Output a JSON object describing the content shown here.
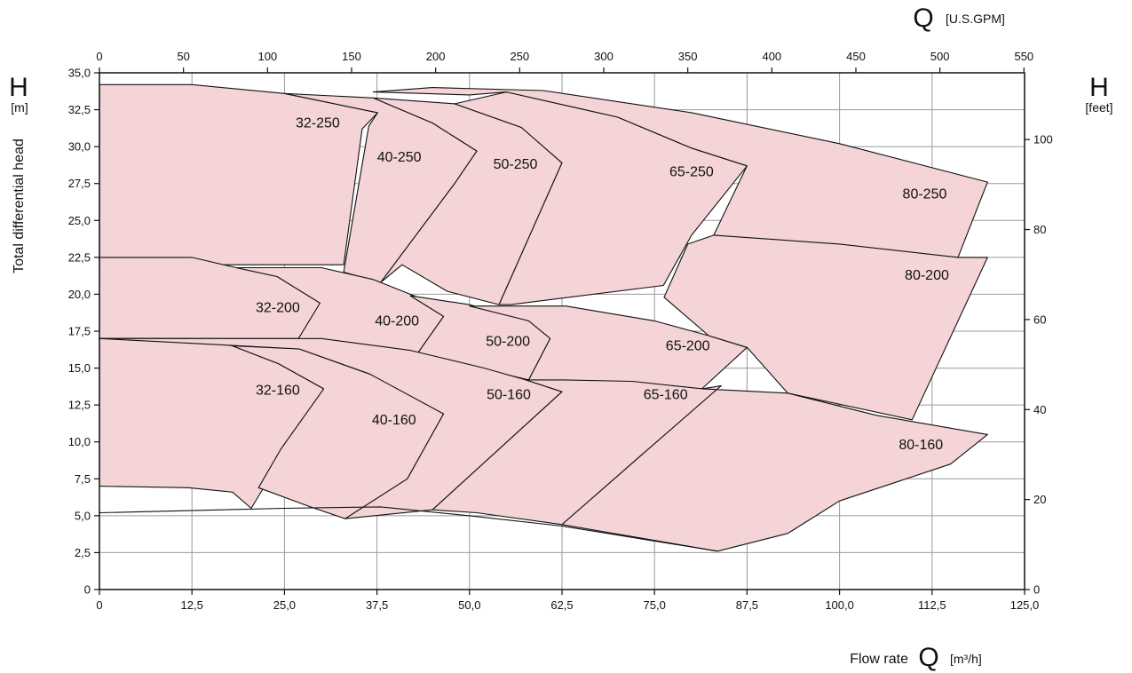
{
  "chart_data": {
    "type": "area",
    "title": "",
    "xlabel": "Flow rate",
    "x_symbol": "Q",
    "x_unit": "[m³/h]",
    "x2_symbol": "Q",
    "x2_unit": "[U.S.GPM]",
    "ylabel": "Total differential head",
    "y_symbol": "H",
    "y_unit": "[m]",
    "y2_symbol": "H",
    "y2_unit": "[feet]",
    "xlim": [
      0,
      125
    ],
    "ylim": [
      0,
      35
    ],
    "x2lim": [
      0,
      550
    ],
    "y2lim": [
      0,
      115
    ],
    "x_ticks": [
      "0",
      "12,5",
      "25,0",
      "37,5",
      "50,0",
      "62,5",
      "75,0",
      "87,5",
      "100,0",
      "112,5",
      "125,0"
    ],
    "y_ticks": [
      "0",
      "2,5",
      "5,0",
      "7,5",
      "10,0",
      "12,5",
      "15,0",
      "17,5",
      "20,0",
      "22,5",
      "25,0",
      "27,5",
      "30,0",
      "32,5",
      "35,0"
    ],
    "x2_ticks": [
      "0",
      "50",
      "100",
      "150",
      "200",
      "250",
      "300",
      "350",
      "400",
      "450",
      "500",
      "550"
    ],
    "y2_ticks": [
      "0",
      "20",
      "40",
      "60",
      "80",
      "100"
    ],
    "grid": true,
    "fill_color": "#f4d4d6",
    "line_color": "#111111",
    "series": [
      {
        "name": "32-250",
        "label_at": [
          29.5,
          31.3
        ],
        "points": [
          [
            0,
            34.2
          ],
          [
            12.5,
            34.2
          ],
          [
            25,
            33.6
          ],
          [
            37.6,
            32.3
          ],
          [
            35.5,
            31.2
          ],
          [
            33,
            22
          ],
          [
            0,
            22
          ]
        ]
      },
      {
        "name": "40-250",
        "label_at": [
          40.5,
          29.0
        ],
        "points": [
          [
            25,
            33.6
          ],
          [
            37,
            33.3
          ],
          [
            45,
            31.6
          ],
          [
            51,
            29.7
          ],
          [
            48,
            27.5
          ],
          [
            38,
            20.8
          ],
          [
            33,
            21.5
          ],
          [
            36.4,
            31.4
          ],
          [
            37.6,
            32.3
          ]
        ]
      },
      {
        "name": "50-250",
        "label_at": [
          56.2,
          28.5
        ],
        "points": [
          [
            37,
            33.3
          ],
          [
            48,
            32.9
          ],
          [
            57,
            31.3
          ],
          [
            62.5,
            28.9
          ],
          [
            54,
            19.3
          ],
          [
            47,
            20.2
          ],
          [
            40.9,
            22.0
          ],
          [
            38,
            20.8
          ],
          [
            48,
            27.5
          ],
          [
            51,
            29.7
          ],
          [
            45,
            31.6
          ]
        ]
      },
      {
        "name": "65-250",
        "label_at": [
          80,
          28.0
        ],
        "points": [
          [
            48,
            32.9
          ],
          [
            55,
            33.7
          ],
          [
            70,
            32.0
          ],
          [
            80,
            29.9
          ],
          [
            87.5,
            28.7
          ],
          [
            80,
            24
          ],
          [
            76.2,
            20.6
          ],
          [
            55.6,
            19.3
          ],
          [
            54,
            19.3
          ],
          [
            62.5,
            28.9
          ],
          [
            57,
            31.3
          ]
        ]
      },
      {
        "name": "80-250",
        "label_at": [
          111.5,
          26.5
        ],
        "points": [
          [
            37,
            33.7
          ],
          [
            45,
            34.0
          ],
          [
            60,
            33.8
          ],
          [
            80,
            32.3
          ],
          [
            100,
            30.2
          ],
          [
            120,
            27.6
          ],
          [
            116,
            22.5
          ],
          [
            92,
            23.5
          ],
          [
            83,
            24
          ],
          [
            87.5,
            28.7
          ],
          [
            80,
            29.9
          ],
          [
            70,
            32.0
          ],
          [
            55,
            33.7
          ],
          [
            50,
            33.5
          ]
        ]
      },
      {
        "name": "32-200",
        "label_at": [
          24.1,
          18.8
        ],
        "points": [
          [
            0,
            22.5
          ],
          [
            12.5,
            22.5
          ],
          [
            18.5,
            21.8
          ],
          [
            24,
            21.2
          ],
          [
            29.5,
            19.6
          ],
          [
            30,
            19.3
          ],
          [
            27,
            17
          ],
          [
            0,
            17
          ]
        ]
      },
      {
        "name": "40-200",
        "label_at": [
          40.2,
          17.9
        ],
        "points": [
          [
            18.5,
            21.8
          ],
          [
            30,
            21.8
          ],
          [
            37,
            21.0
          ],
          [
            45,
            19.4
          ],
          [
            46.5,
            18.5
          ],
          [
            43,
            16
          ],
          [
            26.9,
            17.0
          ],
          [
            29.8,
            19.4
          ],
          [
            24,
            21.2
          ]
        ]
      },
      {
        "name": "50-200",
        "label_at": [
          55.2,
          16.5
        ],
        "points": [
          [
            42,
            19.9
          ],
          [
            50,
            19.3
          ],
          [
            58,
            18.2
          ],
          [
            61,
            17.2
          ],
          [
            60.9,
            17.0
          ],
          [
            58,
            14.2
          ],
          [
            43,
            16
          ],
          [
            46.5,
            18.5
          ]
        ]
      },
      {
        "name": "65-200",
        "label_at": [
          79.5,
          16.2
        ],
        "points": [
          [
            50,
            19.2
          ],
          [
            63,
            19.2
          ],
          [
            75,
            18.2
          ],
          [
            82.3,
            17.2
          ],
          [
            87.5,
            16.4
          ],
          [
            81.4,
            13.6
          ],
          [
            58,
            14.2
          ],
          [
            60.9,
            17.0
          ],
          [
            58,
            18.2
          ]
        ]
      },
      {
        "name": "80-200",
        "label_at": [
          111.8,
          21.0
        ],
        "points": [
          [
            82.3,
            17.2
          ],
          [
            76.3,
            19.8
          ],
          [
            79.5,
            23.4
          ],
          [
            83,
            24
          ],
          [
            100,
            23.4
          ],
          [
            116,
            22.5
          ],
          [
            120,
            22.5
          ],
          [
            109.8,
            11.5
          ],
          [
            93,
            13.3
          ],
          [
            87.5,
            16.4
          ]
        ]
      },
      {
        "name": "32-160",
        "label_at": [
          24.1,
          13.2
        ],
        "points": [
          [
            0,
            17.0
          ],
          [
            12.5,
            17.0
          ],
          [
            18,
            16.5
          ],
          [
            24.2,
            15.3
          ],
          [
            30.3,
            13.6
          ],
          [
            20.5,
            5.5
          ],
          [
            18,
            6.6
          ],
          [
            12,
            6.9
          ],
          [
            0,
            7.0
          ]
        ]
      },
      {
        "name": "40-160",
        "label_at": [
          39.8,
          11.2
        ],
        "points": [
          [
            18,
            16.5
          ],
          [
            27,
            16.3
          ],
          [
            36.5,
            14.6
          ],
          [
            43,
            13
          ],
          [
            46.5,
            11.9
          ],
          [
            41.6,
            7.5
          ],
          [
            33.2,
            4.8
          ],
          [
            28.5,
            5.6
          ],
          [
            21.5,
            6.9
          ],
          [
            24.5,
            9.5
          ],
          [
            30.3,
            13.6
          ],
          [
            24.2,
            15.3
          ]
        ]
      },
      {
        "name": "50-160",
        "label_at": [
          55.3,
          12.9
        ],
        "points": [
          [
            0,
            17
          ],
          [
            30,
            17.0
          ],
          [
            42,
            16.2
          ],
          [
            52,
            15.0
          ],
          [
            57.6,
            14.2
          ],
          [
            62.5,
            13.4
          ],
          [
            45,
            5.4
          ],
          [
            33.2,
            4.8
          ],
          [
            41.6,
            7.5
          ],
          [
            46.5,
            11.9
          ],
          [
            36.5,
            14.6
          ],
          [
            27,
            16.3
          ]
        ]
      },
      {
        "name": "65-160",
        "label_at": [
          76.5,
          12.9
        ],
        "points": [
          [
            58,
            14.2
          ],
          [
            62.5,
            14.2
          ],
          [
            72,
            14.1
          ],
          [
            81.5,
            13.6
          ],
          [
            84,
            13.8
          ],
          [
            73,
            9
          ],
          [
            62.5,
            4.4
          ],
          [
            51,
            5.2
          ],
          [
            45,
            5.4
          ],
          [
            62.5,
            13.4
          ],
          [
            57.6,
            14.2
          ]
        ]
      },
      {
        "name": "80-160",
        "label_at": [
          111,
          9.5
        ],
        "points": [
          [
            81.5,
            13.6
          ],
          [
            93,
            13.3
          ],
          [
            105,
            11.8
          ],
          [
            120,
            10.5
          ],
          [
            115,
            8.5
          ],
          [
            100,
            6
          ],
          [
            93,
            3.8
          ],
          [
            83.5,
            2.6
          ],
          [
            62.5,
            4.4
          ],
          [
            73,
            9
          ],
          [
            84,
            13.8
          ]
        ]
      }
    ],
    "bottom_boundary": [
      [
        0,
        5.2
      ],
      [
        25,
        5.5
      ],
      [
        38,
        5.6
      ],
      [
        50,
        5.0
      ],
      [
        62.5,
        4.3
      ],
      [
        83.5,
        2.6
      ]
    ]
  }
}
